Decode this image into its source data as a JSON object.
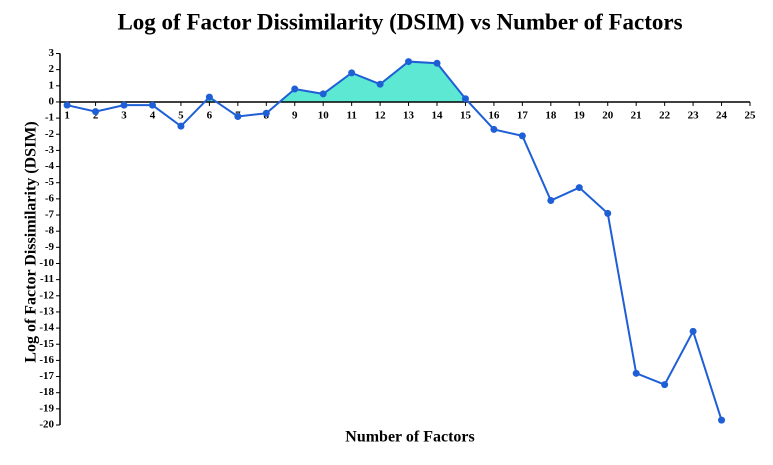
{
  "chart_data": {
    "type": "line",
    "title": "Log of Factor Dissimilarity (DSIM) vs Number of Factors",
    "x_label": "Number of Factors",
    "y_label": "Log of Factor Dissimilarity  (DSIM)",
    "xticks": [
      1,
      2,
      3,
      4,
      5,
      6,
      7,
      8,
      9,
      10,
      11,
      12,
      13,
      14,
      15,
      16,
      17,
      18,
      19,
      20,
      21,
      22,
      23,
      24,
      25
    ],
    "xlim": [
      0.75,
      25
    ],
    "ylim": [
      -20,
      3
    ],
    "yticks": [
      3,
      2,
      1,
      0,
      -1,
      -2,
      -3,
      -4,
      -5,
      -6,
      -7,
      -8,
      -9,
      -10,
      -11,
      -12,
      -13,
      -14,
      -15,
      -16,
      -17,
      -18,
      -19,
      -20
    ],
    "series": [
      {
        "color": "#1f5fd6",
        "fill_positive_color": "#5ce8d2",
        "x": [
          1,
          2,
          3,
          4,
          5,
          6,
          7,
          8,
          9,
          10,
          11,
          12,
          13,
          14,
          15,
          16,
          17,
          18,
          19,
          20,
          21,
          22,
          23,
          24
        ],
        "values": [
          -0.2,
          -0.6,
          -0.2,
          -0.2,
          -1.5,
          0.3,
          -0.9,
          -0.7,
          0.8,
          0.5,
          1.8,
          1.1,
          2.5,
          2.4,
          0.2,
          -1.7,
          -2.1,
          -6.1,
          -5.3,
          -6.9,
          -16.8,
          -17.5,
          -14.2,
          -19.7
        ]
      }
    ]
  }
}
